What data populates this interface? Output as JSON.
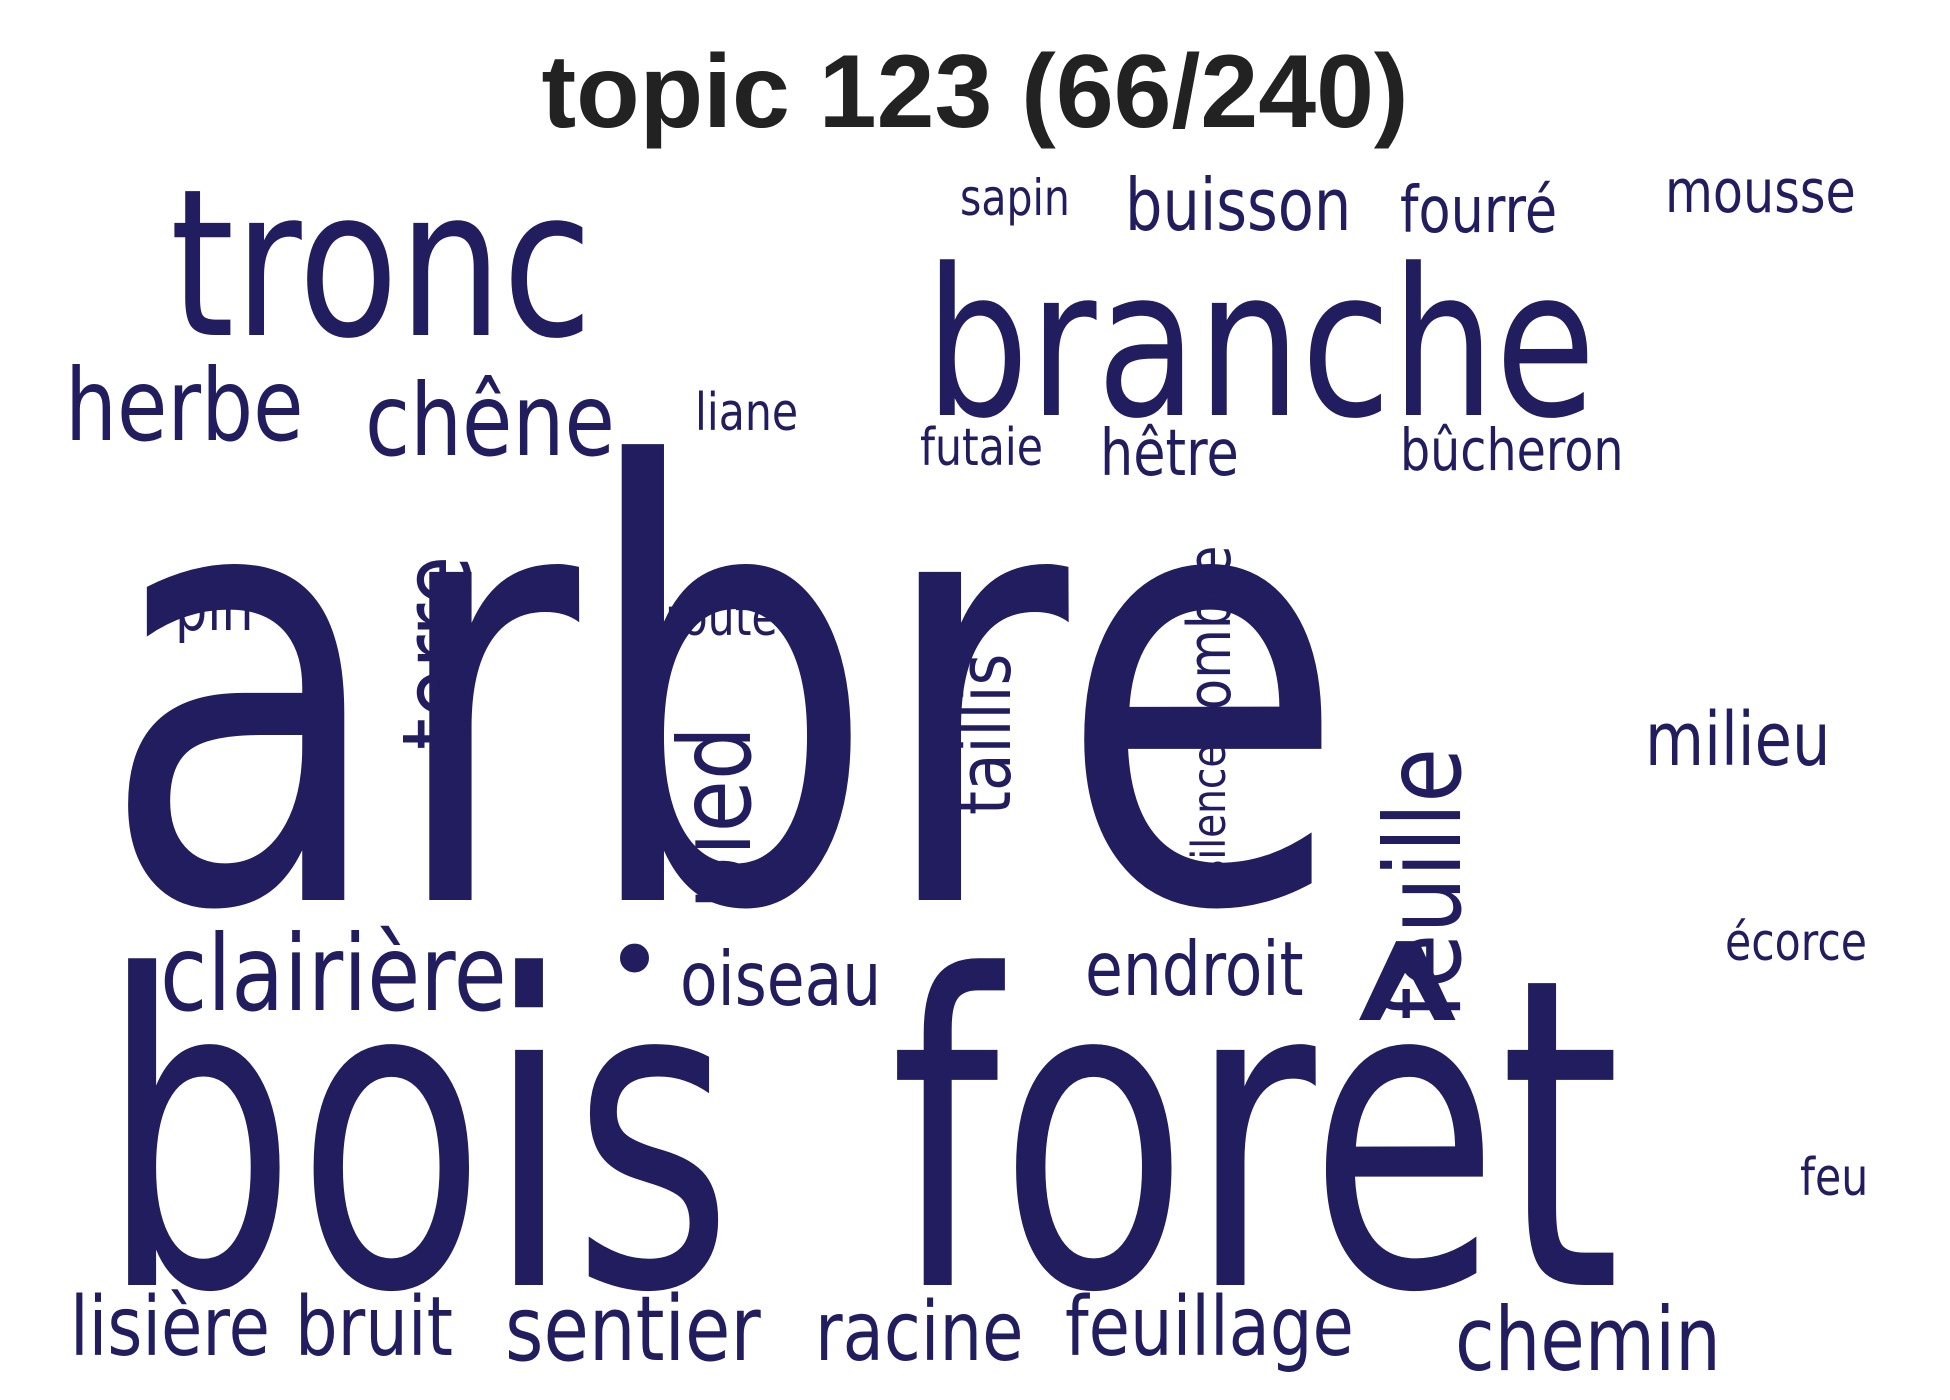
{
  "title": "topic 123 (66/240)",
  "color": "#211d5e",
  "words": [
    "arbre",
    "bois",
    "forêt",
    "tronc",
    "branche",
    "herbe",
    "chêne",
    "liane",
    "sapin",
    "buisson",
    "fourré",
    "mousse",
    "futaie",
    "hêtre",
    "bûcheron",
    "terre",
    "pin",
    "route",
    "pied",
    "taillis",
    "ombre",
    "silence",
    "feuille",
    "milieu",
    "clairière",
    "•",
    "oiseau",
    "endroit",
    "écorce",
    "feu",
    "lisière",
    "bruit",
    "sentier",
    "racine",
    "feuillage",
    "chemin"
  ]
}
